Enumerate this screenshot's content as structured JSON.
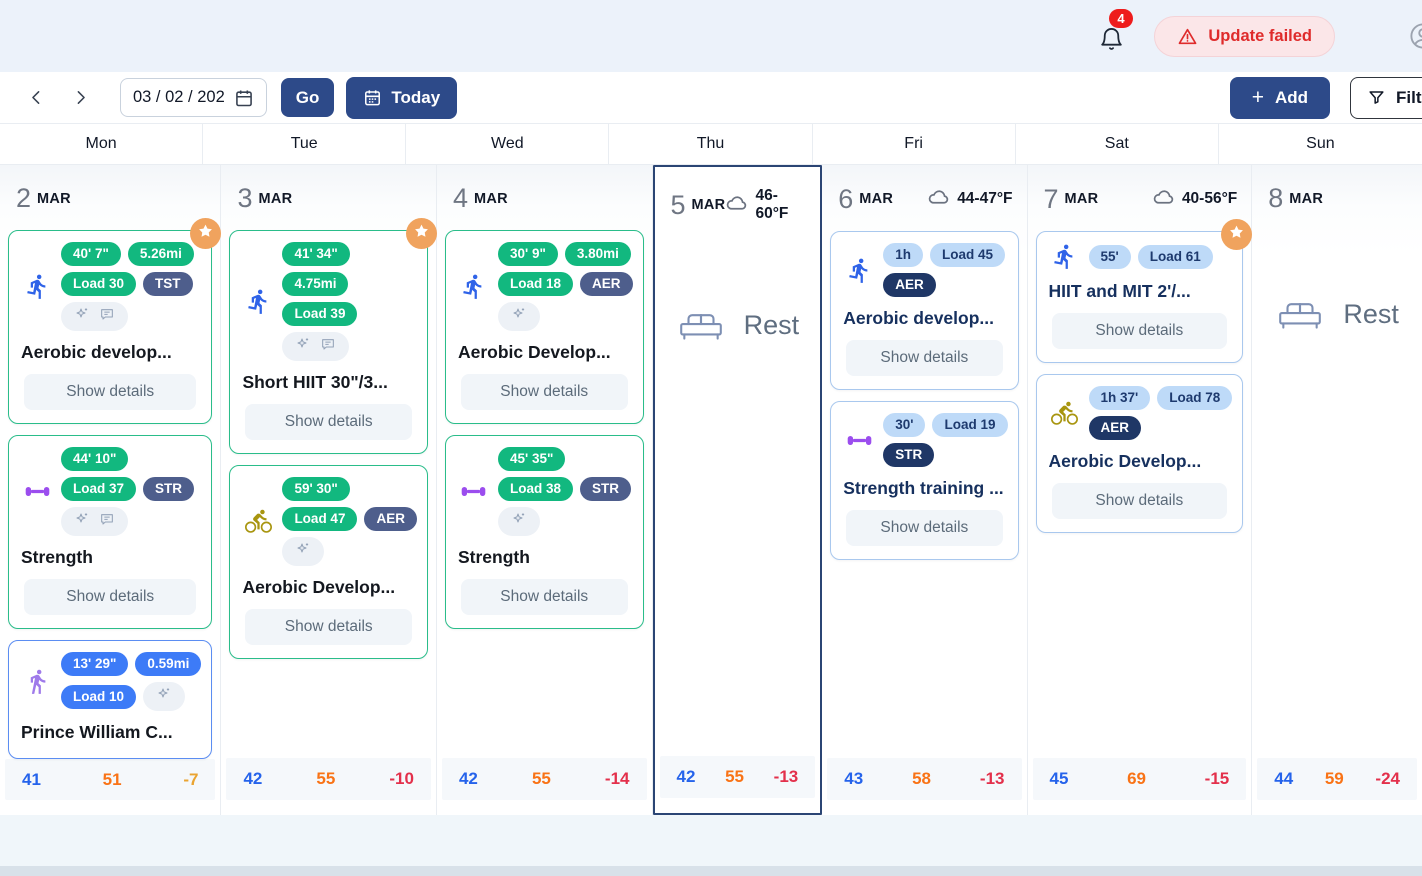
{
  "topbar": {
    "notification_count": "4",
    "update_failed_label": "Update failed"
  },
  "toolbar": {
    "date_value": "03 / 02 / 202",
    "go_label": "Go",
    "today_label": "Today",
    "add_plus": "+",
    "add_label": "Add",
    "filter_label": "Filter"
  },
  "colors": {
    "accent_navy": "#2d4a89",
    "completed_green": "#12b87f",
    "tag_slate": "#4e5e8c",
    "tag_navy": "#1f3766",
    "event_blue": "#3d7bf7",
    "planned_light_blue": "#bedaf8",
    "star_orange": "#f0a35e",
    "error_red": "#df2b2b",
    "stat_blue": "#2563eb",
    "stat_orange": "#f97316",
    "stat_red": "#e3304b",
    "stat_amber": "#eaa431"
  },
  "week": {
    "day_names": [
      "Mon",
      "Tue",
      "Wed",
      "Thu",
      "Fri",
      "Sat",
      "Sun"
    ],
    "days": [
      {
        "day_num": "2",
        "month": "MAR",
        "weather": "",
        "selected": false,
        "rest": false,
        "rest_label": "",
        "cards": [
          {
            "style": "green",
            "sport": "run",
            "starred": true,
            "badge_rows": [
              [
                {
                  "t": "40' 7\"",
                  "k": "green"
                },
                {
                  "t": "5.26mi",
                  "k": "green"
                }
              ],
              [
                {
                  "t": "Load 30",
                  "k": "green"
                },
                {
                  "t": "TST",
                  "k": "slate"
                }
              ]
            ],
            "icons": [
              "sparkle",
              "comment"
            ],
            "icons_inline": false,
            "title": "Aerobic develop...",
            "show_details": "Show details"
          },
          {
            "style": "green",
            "sport": "strength",
            "starred": false,
            "badge_rows": [
              [
                {
                  "t": "44' 10\"",
                  "k": "green"
                }
              ],
              [
                {
                  "t": "Load 37",
                  "k": "green"
                },
                {
                  "t": "STR",
                  "k": "slate"
                }
              ]
            ],
            "icons": [
              "sparkle",
              "comment"
            ],
            "icons_inline": false,
            "title": "Strength",
            "show_details": "Show details"
          },
          {
            "style": "blue",
            "sport": "walk",
            "starred": false,
            "badge_rows": [
              [
                {
                  "t": "13' 29\"",
                  "k": "blue"
                },
                {
                  "t": "0.59mi",
                  "k": "blue"
                }
              ],
              [
                {
                  "t": "Load 10",
                  "k": "blue"
                }
              ]
            ],
            "icons": [
              "sparkle"
            ],
            "icons_inline": true,
            "title": "Prince William C...",
            "show_details": ""
          }
        ],
        "stats": {
          "stat1": "41",
          "stat2": "51",
          "stat3": "-7",
          "stat3_color": "amber"
        }
      },
      {
        "day_num": "3",
        "month": "MAR",
        "weather": "",
        "selected": false,
        "rest": false,
        "rest_label": "",
        "cards": [
          {
            "style": "green",
            "sport": "run",
            "starred": true,
            "badge_rows": [
              [
                {
                  "t": "41' 34\"",
                  "k": "green"
                }
              ],
              [
                {
                  "t": "4.75mi",
                  "k": "green"
                }
              ],
              [
                {
                  "t": "Load 39",
                  "k": "green"
                }
              ]
            ],
            "icons": [
              "sparkle",
              "comment"
            ],
            "icons_inline": false,
            "title": "Short HIIT 30\"/3...",
            "show_details": "Show details"
          },
          {
            "style": "green",
            "sport": "bike",
            "starred": false,
            "badge_rows": [
              [
                {
                  "t": "59' 30\"",
                  "k": "green"
                }
              ],
              [
                {
                  "t": "Load 47",
                  "k": "green"
                },
                {
                  "t": "AER",
                  "k": "slate"
                }
              ]
            ],
            "icons": [
              "sparkle"
            ],
            "icons_inline": false,
            "title": "Aerobic Develop...",
            "show_details": "Show details"
          }
        ],
        "stats": {
          "stat1": "42",
          "stat2": "55",
          "stat3": "-10",
          "stat3_color": "red"
        }
      },
      {
        "day_num": "4",
        "month": "MAR",
        "weather": "",
        "selected": false,
        "rest": false,
        "rest_label": "",
        "cards": [
          {
            "style": "green",
            "sport": "run",
            "starred": false,
            "badge_rows": [
              [
                {
                  "t": "30' 9\"",
                  "k": "green"
                },
                {
                  "t": "3.80mi",
                  "k": "green"
                }
              ],
              [
                {
                  "t": "Load 18",
                  "k": "green"
                },
                {
                  "t": "AER",
                  "k": "slate"
                }
              ]
            ],
            "icons": [
              "sparkle"
            ],
            "icons_inline": false,
            "title": "Aerobic Develop...",
            "show_details": "Show details"
          },
          {
            "style": "green",
            "sport": "strength",
            "starred": false,
            "badge_rows": [
              [
                {
                  "t": "45' 35\"",
                  "k": "green"
                }
              ],
              [
                {
                  "t": "Load 38",
                  "k": "green"
                },
                {
                  "t": "STR",
                  "k": "slate"
                }
              ]
            ],
            "icons": [
              "sparkle"
            ],
            "icons_inline": false,
            "title": "Strength",
            "show_details": "Show details"
          }
        ],
        "stats": {
          "stat1": "42",
          "stat2": "55",
          "stat3": "-14",
          "stat3_color": "red"
        }
      },
      {
        "day_num": "5",
        "month": "MAR",
        "weather": "46-60°F",
        "selected": true,
        "rest": true,
        "rest_label": "Rest",
        "cards": [],
        "stats": {
          "stat1": "42",
          "stat2": "55",
          "stat3": "-13",
          "stat3_color": "red"
        }
      },
      {
        "day_num": "6",
        "month": "MAR",
        "weather": "44-47°F",
        "selected": false,
        "rest": false,
        "rest_label": "",
        "cards": [
          {
            "style": "planned",
            "sport": "run",
            "starred": false,
            "badge_rows": [
              [
                {
                  "t": "1h",
                  "k": "lblue"
                },
                {
                  "t": "Load 45",
                  "k": "lblue"
                }
              ],
              [
                {
                  "t": "AER",
                  "k": "navy"
                }
              ]
            ],
            "icons": [],
            "icons_inline": false,
            "title": "Aerobic develop...",
            "show_details": "Show details"
          },
          {
            "style": "planned",
            "sport": "strength",
            "starred": false,
            "badge_rows": [
              [
                {
                  "t": "30'",
                  "k": "lblue"
                },
                {
                  "t": "Load 19",
                  "k": "lblue"
                }
              ],
              [
                {
                  "t": "STR",
                  "k": "navy"
                }
              ]
            ],
            "icons": [],
            "icons_inline": false,
            "title": "Strength training ...",
            "show_details": "Show details"
          }
        ],
        "stats": {
          "stat1": "43",
          "stat2": "58",
          "stat3": "-13",
          "stat3_color": "red"
        }
      },
      {
        "day_num": "7",
        "month": "MAR",
        "weather": "40-56°F",
        "selected": false,
        "rest": false,
        "rest_label": "",
        "cards": [
          {
            "style": "planned",
            "sport": "run",
            "starred": true,
            "badge_rows": [
              [
                {
                  "t": "55'",
                  "k": "lblue"
                },
                {
                  "t": "Load 61",
                  "k": "lblue"
                }
              ]
            ],
            "icons": [],
            "icons_inline": false,
            "title": "HIIT and MIT 2'/...",
            "show_details": "Show details"
          },
          {
            "style": "planned",
            "sport": "bike",
            "starred": false,
            "badge_rows": [
              [
                {
                  "t": "1h 37'",
                  "k": "lblue"
                },
                {
                  "t": "Load 78",
                  "k": "lblue"
                }
              ],
              [
                {
                  "t": "AER",
                  "k": "navy"
                }
              ]
            ],
            "icons": [],
            "icons_inline": false,
            "title": "Aerobic Develop...",
            "show_details": "Show details"
          }
        ],
        "stats": {
          "stat1": "45",
          "stat2": "69",
          "stat3": "-15",
          "stat3_color": "red"
        }
      },
      {
        "day_num": "8",
        "month": "MAR",
        "weather": "",
        "selected": false,
        "rest": true,
        "rest_label": "Rest",
        "cards": [],
        "stats": {
          "stat1": "44",
          "stat2": "59",
          "stat3": "-24",
          "stat3_color": "red"
        }
      }
    ]
  }
}
